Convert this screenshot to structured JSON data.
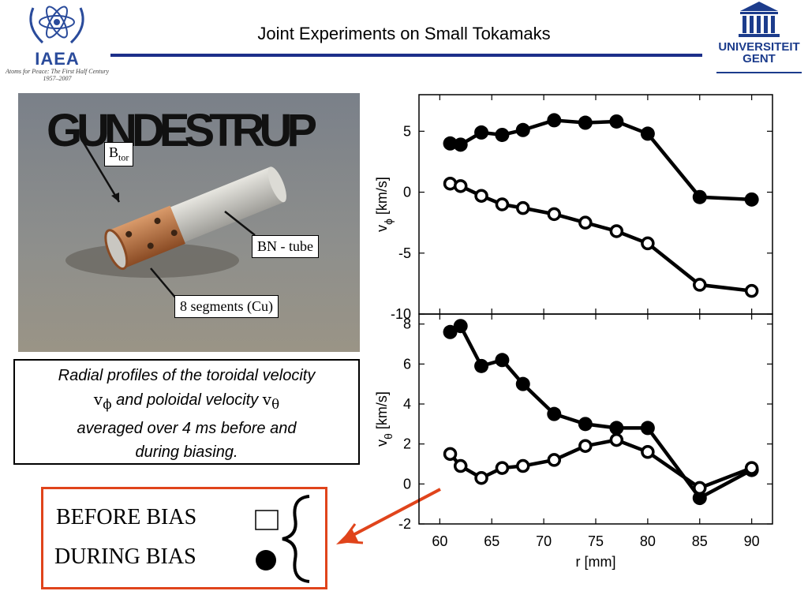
{
  "header": {
    "title": "Joint Experiments on Small Tokamaks",
    "iaea_name": "IAEA",
    "iaea_tagline": "Atoms for Peace: The First Half Century 1957–2007",
    "ugent_name_line1": "UNIVERSITEIT",
    "ugent_name_line2": "GENT",
    "rule_color": "#1c2f8a"
  },
  "photo": {
    "title": "GUNDESTRUP",
    "label_btor_main": "B",
    "label_btor_sub": "tor",
    "label_bn": "BN - tube",
    "label_segments": "8 segments (Cu)"
  },
  "caption": {
    "line1": "Radial profiles of the toroidal velocity",
    "sym_vphi_main": "v",
    "sym_vphi_sub": "ϕ",
    "line2_mid": " and poloidal velocity ",
    "sym_vtheta_main": "v",
    "sym_vtheta_sub": "θ",
    "line3": "averaged over 4 ms before and",
    "line4": "during biasing."
  },
  "legend": {
    "before": "BEFORE BIAS",
    "during": "DURING BIAS",
    "border_color": "#e0441b"
  },
  "chart_data": [
    {
      "type": "line",
      "xlim": [
        58,
        92
      ],
      "ylim": [
        -10,
        8
      ],
      "yticks": [
        -10,
        -5,
        0,
        5
      ],
      "ylabel_main": "v",
      "ylabel_sub": "ϕ",
      "ylabel_unit": " [km/s]",
      "series": [
        {
          "marker": "filled",
          "x": [
            61,
            62,
            64,
            66,
            68,
            71,
            74,
            77,
            80,
            85,
            90
          ],
          "y": [
            4.0,
            3.9,
            4.9,
            4.7,
            5.1,
            5.9,
            5.7,
            5.8,
            4.8,
            -0.4,
            -0.6
          ]
        },
        {
          "marker": "open",
          "x": [
            61,
            62,
            64,
            66,
            68,
            71,
            74,
            77,
            80,
            85,
            90
          ],
          "y": [
            0.7,
            0.5,
            -0.3,
            -1.0,
            -1.3,
            -1.8,
            -2.5,
            -3.2,
            -4.2,
            -7.6,
            -8.1
          ]
        }
      ]
    },
    {
      "type": "line",
      "xlim": [
        58,
        92
      ],
      "ylim": [
        -2,
        8.5
      ],
      "yticks": [
        -2,
        0,
        2,
        4,
        6,
        8
      ],
      "xticks": [
        60,
        65,
        70,
        75,
        80,
        85,
        90
      ],
      "xlabel": "r [mm]",
      "ylabel_main": "v",
      "ylabel_sub": "θ",
      "ylabel_unit": " [km/s]",
      "series": [
        {
          "marker": "filled",
          "x": [
            61,
            62,
            64,
            66,
            68,
            71,
            74,
            77,
            80,
            85,
            90
          ],
          "y": [
            7.6,
            7.9,
            5.9,
            6.2,
            5.0,
            3.5,
            3.0,
            2.8,
            2.8,
            -0.7,
            0.7
          ]
        },
        {
          "marker": "open",
          "x": [
            61,
            62,
            64,
            66,
            68,
            71,
            74,
            77,
            80,
            85,
            90
          ],
          "y": [
            1.5,
            0.9,
            0.3,
            0.8,
            0.9,
            1.2,
            1.9,
            2.2,
            1.6,
            -0.2,
            0.8
          ]
        }
      ]
    }
  ]
}
